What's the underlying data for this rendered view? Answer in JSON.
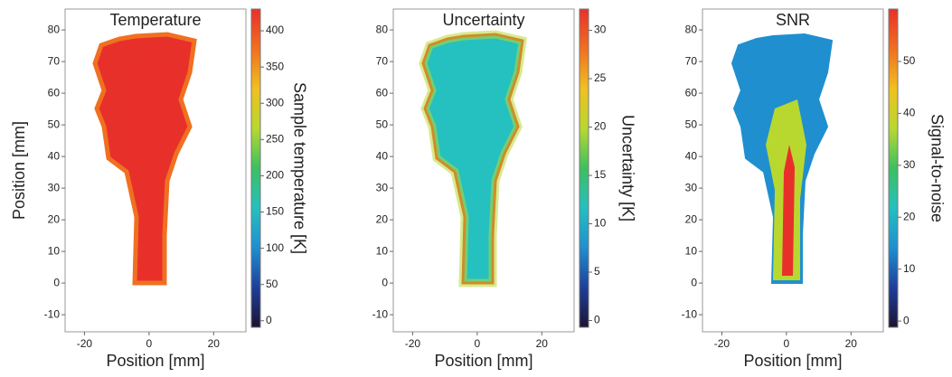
{
  "chart_data": [
    {
      "type": "heatmap",
      "title": "Temperature",
      "xlabel": "Position [mm]",
      "ylabel": "Position [mm]",
      "colorbar_label": "Sample temperature [K]",
      "xlim": [
        -26,
        30
      ],
      "xticks": [
        -20,
        0,
        20
      ],
      "ylim": [
        -15.4,
        86.6
      ],
      "yticks": [
        -10,
        0,
        10,
        20,
        30,
        40,
        50,
        60,
        70,
        80
      ],
      "clim": [
        -9,
        430
      ],
      "cticks": [
        0,
        50,
        100,
        150,
        200,
        250,
        300,
        350,
        400
      ],
      "colormap": [
        "#1b1433",
        "#1f3f9a",
        "#1f8fd0",
        "#25c0c0",
        "#3cc060",
        "#b8d830",
        "#f0c020",
        "#f07020",
        "#e8302a"
      ]
    },
    {
      "type": "heatmap",
      "title": "Uncertainty",
      "xlabel": "Position [mm]",
      "colorbar_label": "Uncertainty [K]",
      "xlim": [
        -26,
        30
      ],
      "xticks": [
        -20,
        0,
        20
      ],
      "ylim": [
        -15.4,
        86.6
      ],
      "yticks": [
        -10,
        0,
        10,
        20,
        30,
        40,
        50,
        60,
        70,
        80
      ],
      "clim": [
        -0.7,
        32.2
      ],
      "cticks": [
        0,
        5,
        10,
        15,
        20,
        25,
        30
      ],
      "colormap": [
        "#1b1433",
        "#1f3f9a",
        "#1f8fd0",
        "#25c0c0",
        "#3cc060",
        "#b8d830",
        "#f0c020",
        "#f07020",
        "#e8302a"
      ]
    },
    {
      "type": "heatmap",
      "title": "SNR",
      "xlabel": "Position [mm]",
      "colorbar_label": "Signal-to-noise",
      "xlim": [
        -26,
        30
      ],
      "xticks": [
        -20,
        0,
        20
      ],
      "ylim": [
        -15.4,
        86.6
      ],
      "yticks": [
        -10,
        0,
        10,
        20,
        30,
        40,
        50,
        60,
        70,
        80
      ],
      "clim": [
        -1.2,
        60.1
      ],
      "cticks": [
        0,
        10,
        20,
        30,
        40,
        50
      ],
      "colormap": [
        "#1b1433",
        "#1f3f9a",
        "#1f8fd0",
        "#25c0c0",
        "#3cc060",
        "#b8d830",
        "#f0c020",
        "#f07020",
        "#e8302a"
      ]
    }
  ]
}
